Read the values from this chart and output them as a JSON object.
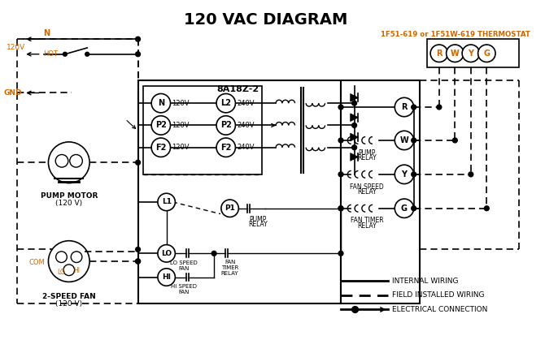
{
  "title": "120 VAC DIAGRAM",
  "title_fontsize": 14,
  "title_fontweight": "bold",
  "bg_color": "#ffffff",
  "text_color": "#000000",
  "orange_color": "#cc6600",
  "line_color": "#000000",
  "thermostat_label": "1F51-619 or 1F51W-619 THERMOSTAT",
  "control_label": "8A18Z-2",
  "terminal_labels": [
    "N",
    "P2",
    "F2"
  ],
  "terminal_right_labels": [
    "L2",
    "P2",
    "F2"
  ],
  "terminal_voltages_left": [
    "120V",
    "120V",
    "120V"
  ],
  "terminal_voltages_right": [
    "240V",
    "240V",
    "240V"
  ],
  "thermostat_terminals": [
    "R",
    "W",
    "Y",
    "G"
  ]
}
